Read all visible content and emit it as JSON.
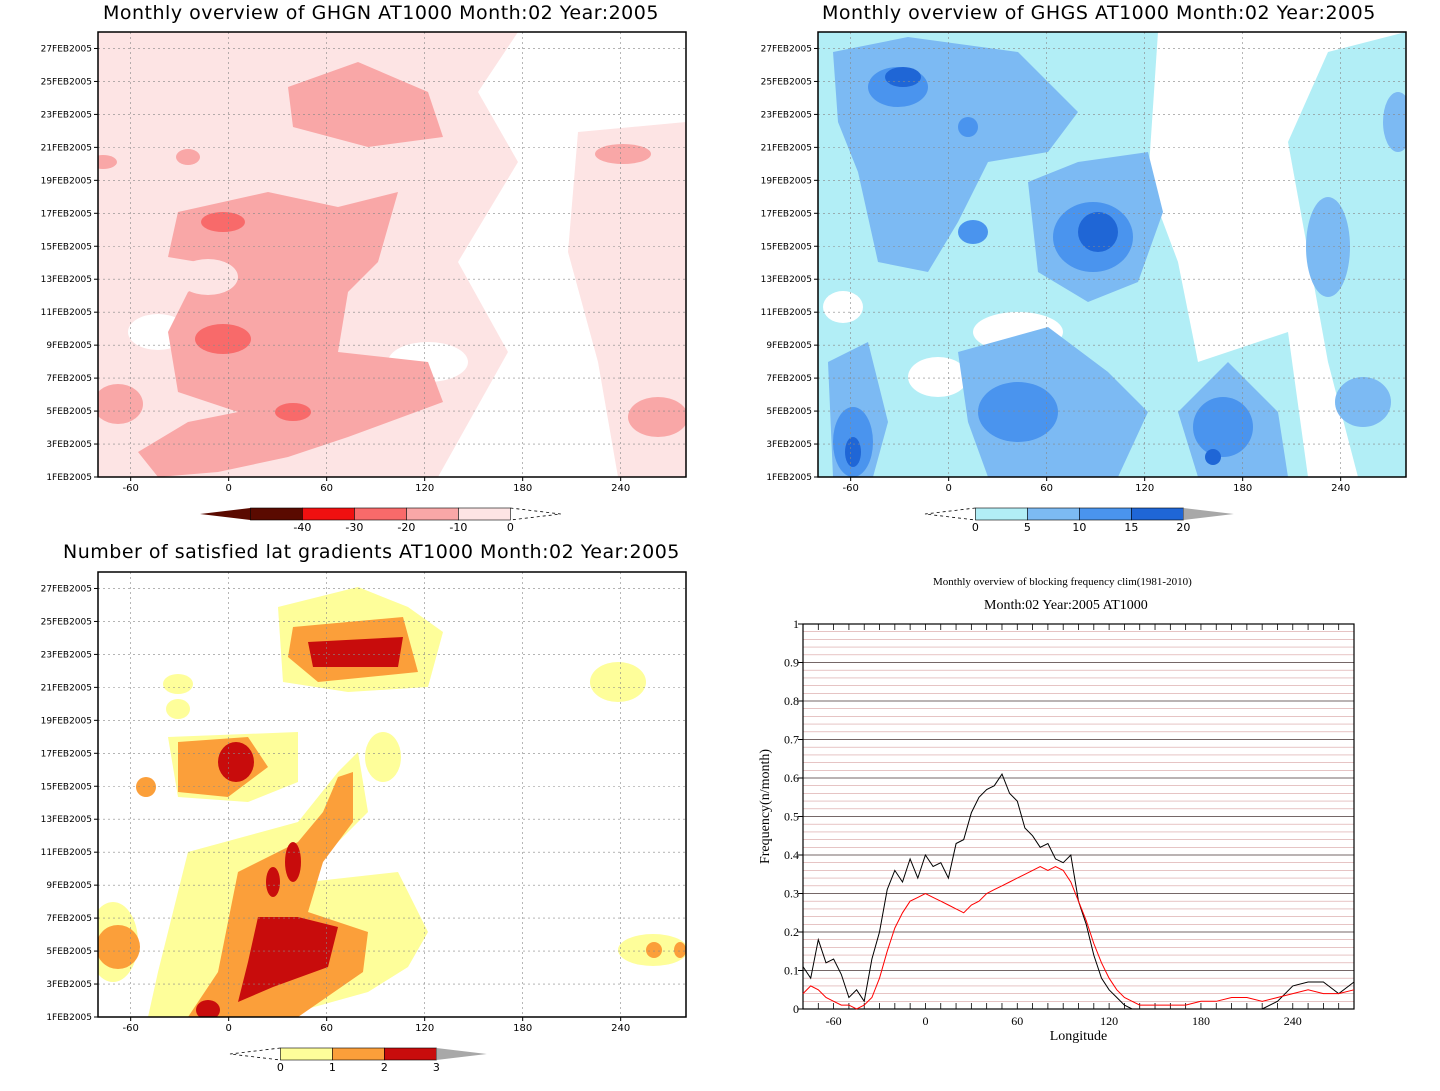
{
  "date_ticks": [
    "1FEB2005",
    "3FEB2005",
    "5FEB2005",
    "7FEB2005",
    "9FEB2005",
    "11FEB2005",
    "13FEB2005",
    "15FEB2005",
    "17FEB2005",
    "19FEB2005",
    "21FEB2005",
    "23FEB2005",
    "25FEB2005",
    "27FEB2005"
  ],
  "lon_ticks": [
    "-60",
    "0",
    "60",
    "120",
    "180",
    "240"
  ],
  "colors": {
    "red_levels": [
      "#5a0a00",
      "#f01010",
      "#f86a6a",
      "#f9a7a7",
      "#fde4e4"
    ],
    "blue_levels": [
      "#b2eef6",
      "#7cbaf3",
      "#4a94ee",
      "#1f66d6",
      "#a8a8a8"
    ],
    "yor_levels": [
      "#fefe9a",
      "#fb9f3a",
      "#c80c0c",
      "#a8a8a8"
    ]
  },
  "chart_data": [
    {
      "type": "heatmap",
      "title": "Monthly overview of GHGN AT1000 Month:02 Year:2005",
      "x_ticks": [
        "-60",
        "0",
        "60",
        "120",
        "180",
        "240"
      ],
      "y_ticks": [
        "1FEB2005",
        "3FEB2005",
        "5FEB2005",
        "7FEB2005",
        "9FEB2005",
        "11FEB2005",
        "13FEB2005",
        "15FEB2005",
        "17FEB2005",
        "19FEB2005",
        "21FEB2005",
        "23FEB2005",
        "25FEB2005",
        "27FEB2005"
      ],
      "colorbar_levels": [
        "-40",
        "-30",
        "-20",
        "-10",
        "0"
      ],
      "colorbar_colors": [
        "#5a0a00",
        "#f01010",
        "#f86a6a",
        "#f9a7a7",
        "#fde4e4"
      ]
    },
    {
      "type": "heatmap",
      "title": "Monthly overview of GHGS AT1000 Month:02 Year:2005",
      "x_ticks": [
        "-60",
        "0",
        "60",
        "120",
        "180",
        "240"
      ],
      "y_ticks": [
        "1FEB2005",
        "3FEB2005",
        "5FEB2005",
        "7FEB2005",
        "9FEB2005",
        "11FEB2005",
        "13FEB2005",
        "15FEB2005",
        "17FEB2005",
        "19FEB2005",
        "21FEB2005",
        "23FEB2005",
        "25FEB2005",
        "27FEB2005"
      ],
      "colorbar_levels": [
        "0",
        "5",
        "10",
        "15",
        "20"
      ],
      "colorbar_colors": [
        "#b2eef6",
        "#7cbaf3",
        "#4a94ee",
        "#1f66d6",
        "#a8a8a8"
      ]
    },
    {
      "type": "heatmap",
      "title": "Number of satisfied lat gradients AT1000 Month:02 Year:2005",
      "x_ticks": [
        "-60",
        "0",
        "60",
        "120",
        "180",
        "240"
      ],
      "y_ticks": [
        "1FEB2005",
        "3FEB2005",
        "5FEB2005",
        "7FEB2005",
        "9FEB2005",
        "11FEB2005",
        "13FEB2005",
        "15FEB2005",
        "17FEB2005",
        "19FEB2005",
        "21FEB2005",
        "23FEB2005",
        "25FEB2005",
        "27FEB2005"
      ],
      "colorbar_levels": [
        "0",
        "1",
        "2",
        "3"
      ],
      "colorbar_colors": [
        "#fefe9a",
        "#fb9f3a",
        "#c80c0c",
        "#a8a8a8"
      ]
    },
    {
      "type": "line",
      "title": "Monthly overview of blocking frequency clim(1981-2010)",
      "subtitle": "Month:02 Year:2005  AT1000",
      "xlabel": "Longitude",
      "ylabel": "Frequency(n/month)",
      "xlim": [
        -80,
        280
      ],
      "ylim": [
        0,
        1
      ],
      "x_ticks": [
        "-60",
        "0",
        "60",
        "120",
        "180",
        "240"
      ],
      "y_ticks": [
        "0",
        "0.1",
        "0.2",
        "0.3",
        "0.4",
        "0.5",
        "0.6",
        "0.7",
        "0.8",
        "0.9",
        "1"
      ],
      "grid": true,
      "series": [
        {
          "color": "#000000",
          "x": [
            -80,
            -75,
            -70,
            -65,
            -60,
            -55,
            -50,
            -45,
            -40,
            -35,
            -30,
            -25,
            -20,
            -15,
            -10,
            -5,
            0,
            5,
            10,
            15,
            20,
            25,
            30,
            35,
            40,
            45,
            50,
            55,
            60,
            65,
            70,
            75,
            80,
            85,
            90,
            95,
            100,
            105,
            110,
            115,
            120,
            125,
            130,
            135,
            140,
            150,
            160,
            170,
            180,
            190,
            200,
            210,
            220,
            230,
            240,
            250,
            260,
            270,
            280
          ],
          "y": [
            0.11,
            0.08,
            0.18,
            0.12,
            0.13,
            0.09,
            0.03,
            0.05,
            0.02,
            0.13,
            0.2,
            0.31,
            0.36,
            0.33,
            0.39,
            0.34,
            0.4,
            0.37,
            0.38,
            0.34,
            0.43,
            0.44,
            0.51,
            0.55,
            0.57,
            0.58,
            0.61,
            0.56,
            0.54,
            0.47,
            0.45,
            0.42,
            0.43,
            0.39,
            0.38,
            0.4,
            0.28,
            0.22,
            0.14,
            0.08,
            0.05,
            0.03,
            0.01,
            0.0,
            0.0,
            0.0,
            0.0,
            0.0,
            0.0,
            0.0,
            0.0,
            0.0,
            0.0,
            0.02,
            0.06,
            0.07,
            0.07,
            0.04,
            0.07
          ]
        },
        {
          "color": "#ff0000",
          "x": [
            -80,
            -75,
            -70,
            -65,
            -60,
            -55,
            -50,
            -45,
            -40,
            -35,
            -30,
            -25,
            -20,
            -15,
            -10,
            -5,
            0,
            5,
            10,
            15,
            20,
            25,
            30,
            35,
            40,
            45,
            50,
            55,
            60,
            65,
            70,
            75,
            80,
            85,
            90,
            95,
            100,
            105,
            110,
            115,
            120,
            125,
            130,
            135,
            140,
            150,
            160,
            170,
            180,
            190,
            200,
            210,
            220,
            230,
            240,
            250,
            260,
            270,
            280
          ],
          "y": [
            0.04,
            0.06,
            0.05,
            0.03,
            0.02,
            0.01,
            0.01,
            0.0,
            0.01,
            0.03,
            0.08,
            0.15,
            0.21,
            0.25,
            0.28,
            0.29,
            0.3,
            0.29,
            0.28,
            0.27,
            0.26,
            0.25,
            0.27,
            0.28,
            0.3,
            0.31,
            0.32,
            0.33,
            0.34,
            0.35,
            0.36,
            0.37,
            0.36,
            0.37,
            0.36,
            0.33,
            0.28,
            0.23,
            0.17,
            0.12,
            0.08,
            0.05,
            0.03,
            0.02,
            0.01,
            0.01,
            0.01,
            0.01,
            0.02,
            0.02,
            0.03,
            0.03,
            0.02,
            0.03,
            0.04,
            0.05,
            0.04,
            0.04,
            0.05
          ]
        }
      ]
    }
  ]
}
